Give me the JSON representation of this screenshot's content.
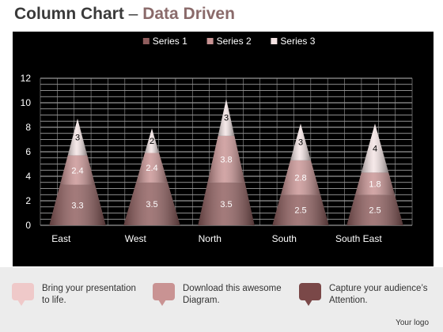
{
  "header": {
    "title_main": "Column Chart",
    "title_dash": "–",
    "title_sub": "Data Driven"
  },
  "chart_data": {
    "type": "bar",
    "stacked": true,
    "bar_shape": "cone",
    "categories": [
      "East",
      "West",
      "North",
      "South",
      "South East"
    ],
    "series": [
      {
        "name": "Series 1",
        "values": [
          3.3,
          3.5,
          3.5,
          2.5,
          2.5
        ],
        "color": "#8f5d5d"
      },
      {
        "name": "Series 2",
        "values": [
          2.4,
          2.4,
          3.8,
          2.8,
          1.8
        ],
        "color": "#c99393"
      },
      {
        "name": "Series 3",
        "values": [
          3,
          2,
          3,
          3,
          4
        ],
        "color": "#f3e3e3"
      }
    ],
    "ylim": [
      0,
      12
    ],
    "yticks": [
      "0",
      "2",
      "4",
      "6",
      "8",
      "10",
      "12"
    ],
    "ytick_values": [
      0,
      2,
      4,
      6,
      8,
      10,
      12
    ],
    "grid": true,
    "legend": "top",
    "data_labels": [
      [
        "3.3",
        "3.5",
        "3.5",
        "2.5",
        "2.5"
      ],
      [
        "2.4",
        "2.4",
        "3.8",
        "2.8",
        "1.8"
      ],
      [
        "3",
        "2",
        "3",
        "3",
        "4"
      ]
    ]
  },
  "footer": {
    "items": [
      {
        "text": "Bring your presentation\nto life.",
        "color": "#efc9c9"
      },
      {
        "text": "Download this awesome\nDiagram.",
        "color": "#c99393"
      },
      {
        "text": "Capture your audience’s\nAttention.",
        "color": "#7a4848"
      }
    ],
    "logo": "Your logo"
  }
}
